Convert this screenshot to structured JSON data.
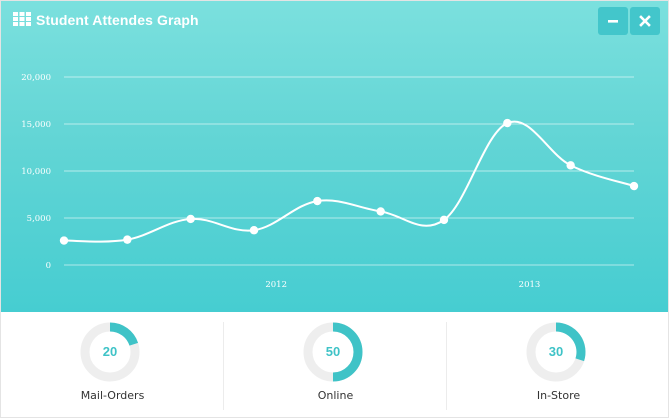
{
  "widget": {
    "title": "Student Attendes Graph",
    "title_icon": "grid-icon",
    "buttons": [
      {
        "name": "minimize",
        "icon": "minus-icon"
      },
      {
        "name": "close",
        "icon": "close-icon"
      }
    ],
    "colors": {
      "panel_top": "#7be0de",
      "panel_bottom": "#46cdd1",
      "button_bg": "#43c6cb",
      "line": "#ffffff",
      "donut_fill": "#3fc3c7",
      "donut_track": "#eeeeee"
    }
  },
  "chart_data": {
    "type": "line",
    "title": "",
    "xlabel": "",
    "ylabel": "",
    "y_ticks": [
      "20,000",
      "15,000",
      "10,000",
      "5,000",
      "0"
    ],
    "y_tick_values": [
      20000,
      15000,
      10000,
      5000,
      0
    ],
    "ylim": [
      0,
      20000
    ],
    "x_ticks": [
      "2012",
      "2013"
    ],
    "x_tick_positions": [
      3.35,
      7.35
    ],
    "xlim": [
      0,
      9
    ],
    "grid": true,
    "series": [
      {
        "x": [
          0,
          1,
          2,
          3,
          4,
          5,
          6,
          7,
          8,
          9
        ],
        "values": [
          2600,
          2700,
          4900,
          3700,
          6800,
          5700,
          4800,
          15100,
          10600,
          8400
        ]
      }
    ]
  },
  "stats": [
    {
      "value": "20",
      "percent": 20,
      "label": "Mail-Orders"
    },
    {
      "value": "50",
      "percent": 50,
      "label": "Online"
    },
    {
      "value": "30",
      "percent": 30,
      "label": "In-Store"
    }
  ]
}
